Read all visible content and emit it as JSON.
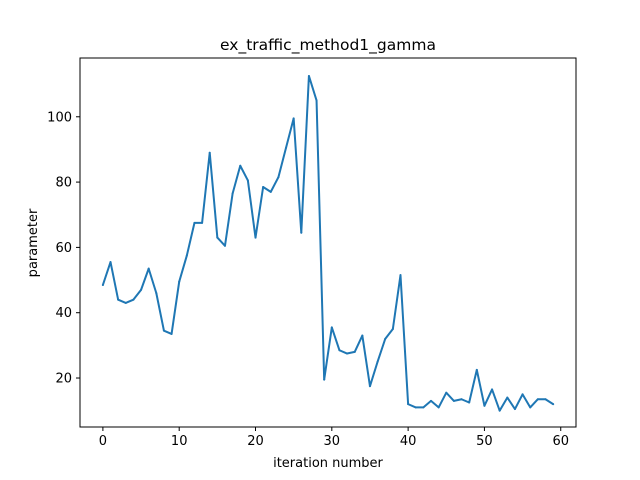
{
  "chart_data": {
    "type": "line",
    "title": "ex_traffic_method1_gamma",
    "xlabel": "iteration number",
    "ylabel": "parameter",
    "xlim": [
      -3,
      62
    ],
    "ylim": [
      5,
      118
    ],
    "xticks": [
      0,
      10,
      20,
      30,
      40,
      50,
      60
    ],
    "yticks": [
      20,
      40,
      60,
      80,
      100
    ],
    "grid": false,
    "series_color": "#1f77b4",
    "series": [
      {
        "x": [
          0,
          1,
          2,
          3,
          4,
          5,
          6,
          7,
          8,
          9,
          10,
          11,
          12,
          13,
          14,
          15,
          16,
          17,
          18,
          19,
          20,
          21,
          22,
          23,
          24,
          25,
          26,
          27,
          28,
          29,
          30,
          31,
          32,
          33,
          34,
          35,
          36,
          37,
          38,
          39,
          40,
          41,
          42,
          43,
          44,
          45,
          46,
          47,
          48,
          49,
          50,
          51,
          52,
          53,
          54,
          55,
          56,
          57,
          58,
          59
        ],
        "values": [
          48.5,
          55.5,
          44,
          43,
          44,
          47,
          53.5,
          46,
          34.5,
          33.5,
          49.5,
          57.5,
          67.5,
          67.5,
          89,
          63,
          60.5,
          76.5,
          85,
          80.5,
          63,
          78.5,
          77,
          81.5,
          90.5,
          99.5,
          64.5,
          112.5,
          105,
          19.5,
          35.5,
          28.5,
          27.5,
          28,
          33,
          17.5,
          25,
          32,
          35,
          51.5,
          12,
          11,
          11,
          13,
          11,
          15.5,
          13,
          13.5,
          12.5,
          22.5,
          11.5,
          16.5,
          10,
          14,
          10.5,
          15,
          11,
          13.5,
          13.5,
          12
        ]
      }
    ]
  }
}
